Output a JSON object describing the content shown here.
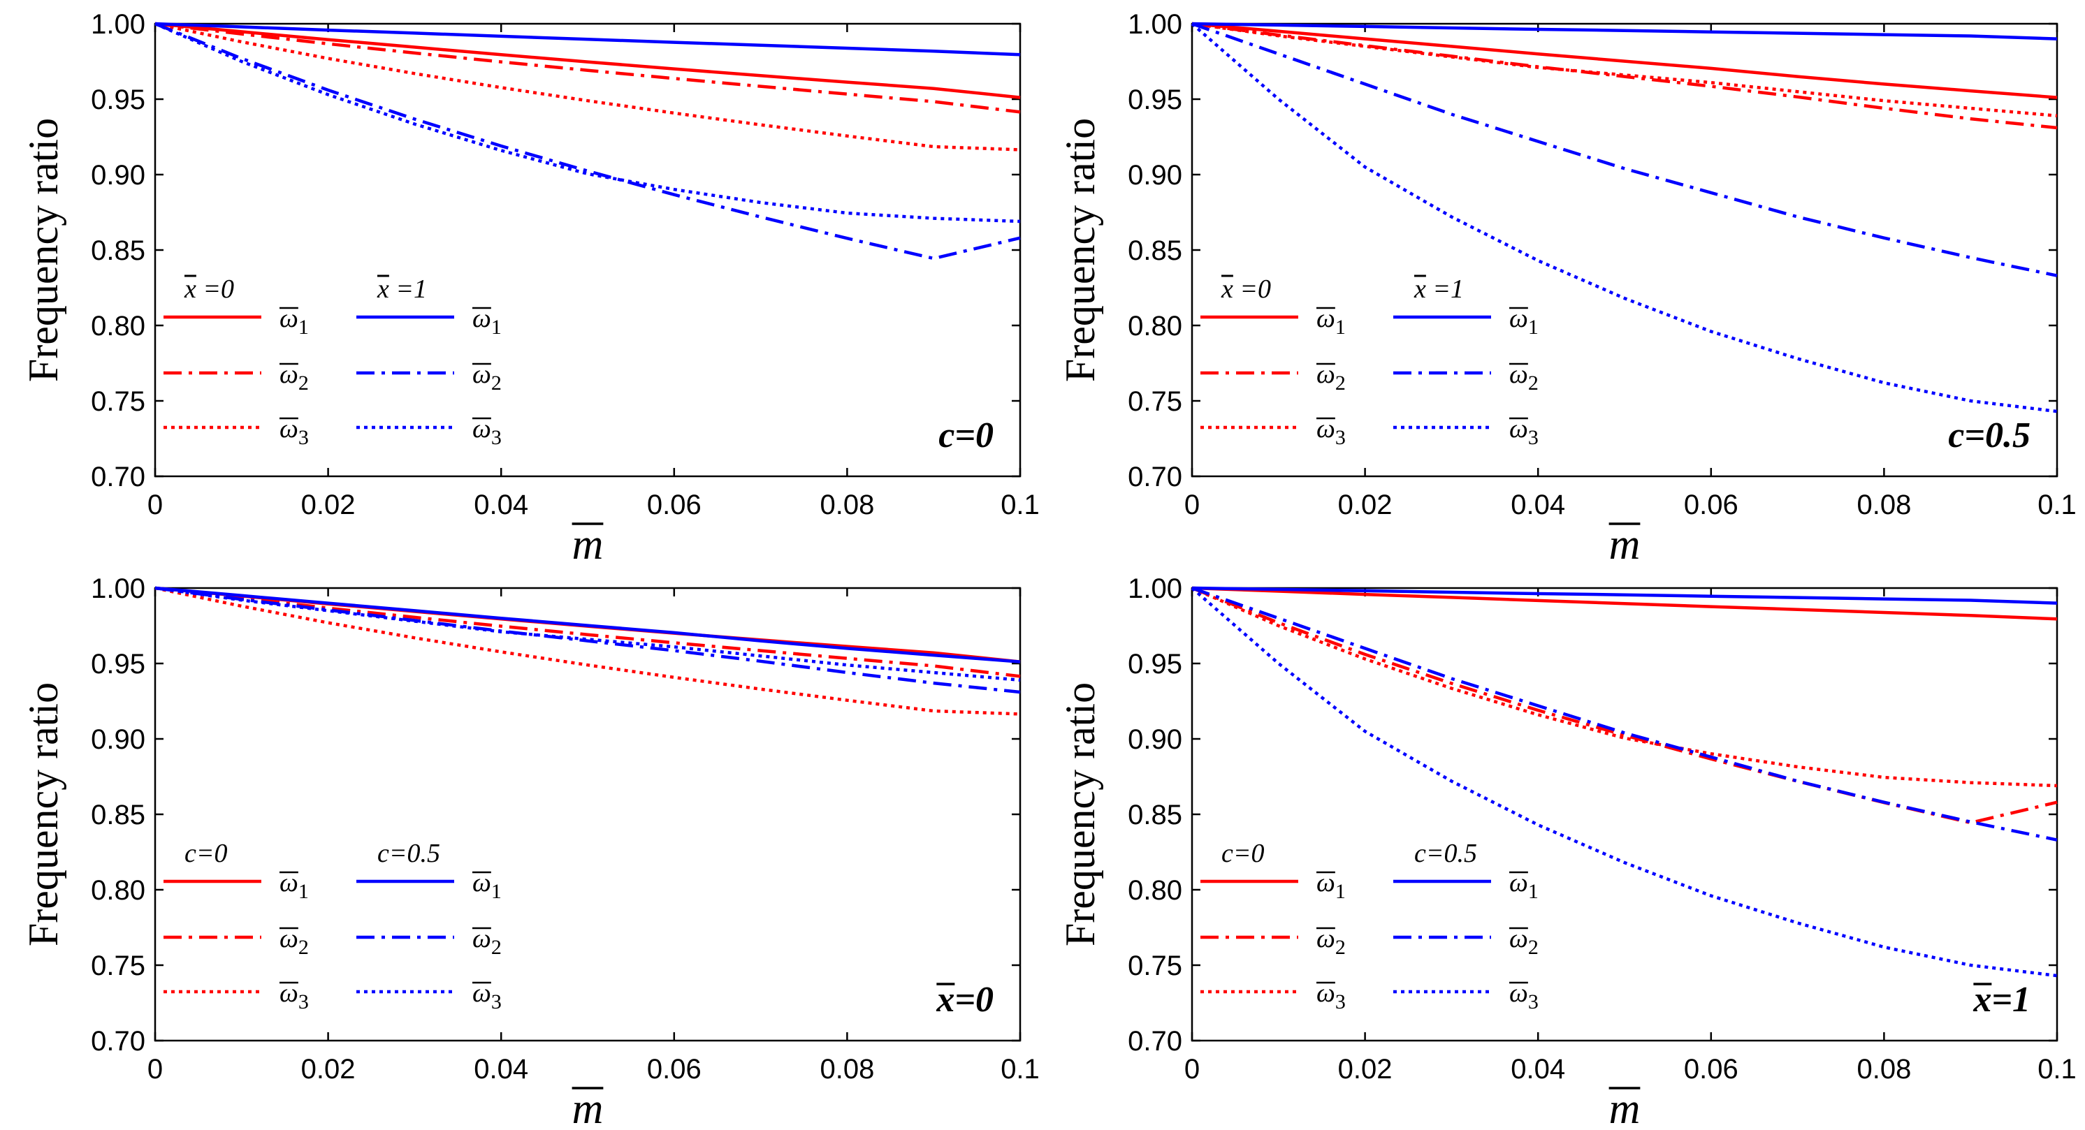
{
  "colors": {
    "red": "#ff0000",
    "blue": "#0000ff"
  },
  "chart_data": [
    {
      "type": "line",
      "xlabel": "m",
      "xlabel_overbar": true,
      "ylabel": "Frequency ratio",
      "xlim": [
        0,
        0.1
      ],
      "ylim": [
        0.7,
        1.0
      ],
      "x_ticks": [
        "0",
        "0.02",
        "0.04",
        "0.06",
        "0.08",
        "0.1"
      ],
      "y_ticks": [
        "0.70",
        "0.75",
        "0.80",
        "0.85",
        "0.90",
        "0.95",
        "1.00"
      ],
      "grid": false,
      "annotation": {
        "text": "c=0",
        "position": "bottom-right"
      },
      "legend": {
        "placement": "left",
        "groups": [
          {
            "title": "x =0",
            "title_overbar_char": "x",
            "color": "red"
          },
          {
            "title": "x =1",
            "title_overbar_char": "x",
            "color": "blue"
          }
        ],
        "entries": [
          {
            "label": "ω1",
            "style": "solid"
          },
          {
            "label": "ω2",
            "style": "dashdot"
          },
          {
            "label": "ω3",
            "style": "dotted"
          }
        ]
      },
      "x": [
        0,
        0.01,
        0.02,
        0.03,
        0.04,
        0.05,
        0.06,
        0.07,
        0.08,
        0.09,
        0.1
      ],
      "series": [
        {
          "color": "red",
          "style": "solid",
          "values": [
            1.0,
            0.9947,
            0.9895,
            0.9845,
            0.9795,
            0.9747,
            0.9701,
            0.9656,
            0.9613,
            0.9571,
            0.9511
          ]
        },
        {
          "color": "red",
          "style": "dashdot",
          "values": [
            1.0,
            0.9932,
            0.9867,
            0.9806,
            0.9747,
            0.9691,
            0.9637,
            0.9585,
            0.9534,
            0.9484,
            0.9415
          ]
        },
        {
          "color": "red",
          "style": "dotted",
          "values": [
            1.0,
            0.988,
            0.977,
            0.967,
            0.9577,
            0.949,
            0.9408,
            0.933,
            0.9256,
            0.9185,
            0.9165
          ]
        },
        {
          "color": "blue",
          "style": "solid",
          "values": [
            1.0,
            0.9979,
            0.9958,
            0.9938,
            0.9917,
            0.9897,
            0.9877,
            0.9858,
            0.9838,
            0.9818,
            0.9795
          ]
        },
        {
          "color": "blue",
          "style": "dashdot",
          "values": [
            1.0,
            0.977,
            0.956,
            0.9368,
            0.919,
            0.9024,
            0.8867,
            0.8719,
            0.8578,
            0.8444,
            0.858
          ]
        },
        {
          "color": "blue",
          "style": "dotted",
          "values": [
            1.0,
            0.975,
            0.953,
            0.9335,
            0.916,
            0.9005,
            0.8902,
            0.8815,
            0.8745,
            0.871,
            0.869
          ]
        }
      ]
    },
    {
      "type": "line",
      "xlabel": "m",
      "xlabel_overbar": true,
      "ylabel": "Frequency ratio",
      "xlim": [
        0,
        0.1
      ],
      "ylim": [
        0.7,
        1.0
      ],
      "x_ticks": [
        "0",
        "0.02",
        "0.04",
        "0.06",
        "0.08",
        "0.1"
      ],
      "y_ticks": [
        "0.70",
        "0.75",
        "0.80",
        "0.85",
        "0.90",
        "0.95",
        "1.00"
      ],
      "grid": false,
      "annotation": {
        "text": "c=0.5",
        "position": "bottom-right"
      },
      "legend": {
        "placement": "left",
        "groups": [
          {
            "title": "x =0",
            "title_overbar_char": "x",
            "color": "red"
          },
          {
            "title": "x =1",
            "title_overbar_char": "x",
            "color": "blue"
          }
        ],
        "entries": [
          {
            "label": "ω1",
            "style": "solid"
          },
          {
            "label": "ω2",
            "style": "dashdot"
          },
          {
            "label": "ω3",
            "style": "dotted"
          }
        ]
      },
      "x": [
        0,
        0.01,
        0.02,
        0.03,
        0.04,
        0.05,
        0.06,
        0.07,
        0.08,
        0.09,
        0.1
      ],
      "series": [
        {
          "color": "red",
          "style": "solid",
          "values": [
            1.0,
            0.995,
            0.99,
            0.985,
            0.98,
            0.9752,
            0.9704,
            0.965,
            0.96,
            0.9555,
            0.9511
          ]
        },
        {
          "color": "red",
          "style": "dashdot",
          "values": [
            1.0,
            0.9925,
            0.9855,
            0.9785,
            0.9715,
            0.965,
            0.9585,
            0.9515,
            0.944,
            0.937,
            0.931
          ]
        },
        {
          "color": "red",
          "style": "dotted",
          "values": [
            1.0,
            0.992,
            0.985,
            0.978,
            0.971,
            0.966,
            0.961,
            0.955,
            0.949,
            0.944,
            0.939
          ]
        },
        {
          "color": "blue",
          "style": "solid",
          "values": [
            1.0,
            0.9991,
            0.9982,
            0.9972,
            0.9963,
            0.9955,
            0.9946,
            0.9937,
            0.9928,
            0.9919,
            0.99
          ]
        },
        {
          "color": "blue",
          "style": "dashdot",
          "values": [
            1.0,
            0.98,
            0.96,
            0.94,
            0.922,
            0.904,
            0.888,
            0.872,
            0.858,
            0.845,
            0.833
          ]
        },
        {
          "color": "blue",
          "style": "dotted",
          "values": [
            1.0,
            0.95,
            0.905,
            0.872,
            0.843,
            0.818,
            0.796,
            0.778,
            0.762,
            0.75,
            0.743
          ]
        }
      ]
    },
    {
      "type": "line",
      "xlabel": "m",
      "xlabel_overbar": true,
      "ylabel": "Frequency ratio",
      "xlim": [
        0,
        0.1
      ],
      "ylim": [
        0.7,
        1.0
      ],
      "x_ticks": [
        "0",
        "0.02",
        "0.04",
        "0.06",
        "0.08",
        "0.1"
      ],
      "y_ticks": [
        "0.70",
        "0.75",
        "0.80",
        "0.85",
        "0.90",
        "0.95",
        "1.00"
      ],
      "grid": false,
      "annotation": {
        "text": "x=0",
        "overbar_char": "x",
        "position": "bottom-right"
      },
      "legend": {
        "placement": "left",
        "groups": [
          {
            "title": "c=0",
            "color": "red"
          },
          {
            "title": "c=0.5",
            "color": "blue"
          }
        ],
        "entries": [
          {
            "label": "ω1",
            "style": "solid"
          },
          {
            "label": "ω2",
            "style": "dashdot"
          },
          {
            "label": "ω3",
            "style": "dotted"
          }
        ]
      },
      "x": [
        0,
        0.01,
        0.02,
        0.03,
        0.04,
        0.05,
        0.06,
        0.07,
        0.08,
        0.09,
        0.1
      ],
      "series": [
        {
          "color": "red",
          "style": "solid",
          "values": [
            1.0,
            0.9947,
            0.9895,
            0.9845,
            0.9795,
            0.9747,
            0.9701,
            0.9656,
            0.9613,
            0.9571,
            0.9511
          ]
        },
        {
          "color": "red",
          "style": "dashdot",
          "values": [
            1.0,
            0.9932,
            0.9867,
            0.9806,
            0.9747,
            0.9691,
            0.9637,
            0.9585,
            0.9534,
            0.9484,
            0.9415
          ]
        },
        {
          "color": "red",
          "style": "dotted",
          "values": [
            1.0,
            0.988,
            0.977,
            0.967,
            0.9577,
            0.949,
            0.9408,
            0.933,
            0.9256,
            0.9185,
            0.9165
          ]
        },
        {
          "color": "blue",
          "style": "solid",
          "values": [
            1.0,
            0.995,
            0.99,
            0.985,
            0.98,
            0.9752,
            0.9704,
            0.965,
            0.96,
            0.9555,
            0.9511
          ]
        },
        {
          "color": "blue",
          "style": "dashdot",
          "values": [
            1.0,
            0.9925,
            0.9855,
            0.9785,
            0.9715,
            0.965,
            0.9585,
            0.9515,
            0.944,
            0.937,
            0.931
          ]
        },
        {
          "color": "blue",
          "style": "dotted",
          "values": [
            1.0,
            0.992,
            0.985,
            0.978,
            0.971,
            0.966,
            0.961,
            0.955,
            0.949,
            0.944,
            0.939
          ]
        }
      ]
    },
    {
      "type": "line",
      "xlabel": "m",
      "xlabel_overbar": true,
      "ylabel": "Frequency ratio",
      "xlim": [
        0,
        0.1
      ],
      "ylim": [
        0.7,
        1.0
      ],
      "x_ticks": [
        "0",
        "0.02",
        "0.04",
        "0.06",
        "0.08",
        "0.1"
      ],
      "y_ticks": [
        "0.70",
        "0.75",
        "0.80",
        "0.85",
        "0.90",
        "0.95",
        "1.00"
      ],
      "grid": false,
      "annotation": {
        "text": "x=1",
        "overbar_char": "x",
        "position": "bottom-right"
      },
      "legend": {
        "placement": "left",
        "groups": [
          {
            "title": "c=0",
            "color": "red"
          },
          {
            "title": "c=0.5",
            "color": "blue"
          }
        ],
        "entries": [
          {
            "label": "ω1",
            "style": "solid"
          },
          {
            "label": "ω2",
            "style": "dashdot"
          },
          {
            "label": "ω3",
            "style": "dotted"
          }
        ]
      },
      "x": [
        0,
        0.01,
        0.02,
        0.03,
        0.04,
        0.05,
        0.06,
        0.07,
        0.08,
        0.09,
        0.1
      ],
      "series": [
        {
          "color": "red",
          "style": "solid",
          "values": [
            1.0,
            0.9979,
            0.9958,
            0.9938,
            0.9917,
            0.9897,
            0.9877,
            0.9858,
            0.9838,
            0.9818,
            0.9795
          ]
        },
        {
          "color": "red",
          "style": "dashdot",
          "values": [
            1.0,
            0.977,
            0.956,
            0.9368,
            0.919,
            0.9024,
            0.8867,
            0.8719,
            0.8578,
            0.8444,
            0.858
          ]
        },
        {
          "color": "red",
          "style": "dotted",
          "values": [
            1.0,
            0.975,
            0.953,
            0.9335,
            0.916,
            0.9005,
            0.8902,
            0.8815,
            0.8745,
            0.871,
            0.869
          ]
        },
        {
          "color": "blue",
          "style": "solid",
          "values": [
            1.0,
            0.9991,
            0.9982,
            0.9972,
            0.9963,
            0.9955,
            0.9946,
            0.9937,
            0.9928,
            0.9919,
            0.99
          ]
        },
        {
          "color": "blue",
          "style": "dashdot",
          "values": [
            1.0,
            0.98,
            0.96,
            0.94,
            0.922,
            0.904,
            0.888,
            0.872,
            0.858,
            0.845,
            0.833
          ]
        },
        {
          "color": "blue",
          "style": "dotted",
          "values": [
            1.0,
            0.95,
            0.905,
            0.872,
            0.843,
            0.818,
            0.796,
            0.778,
            0.762,
            0.75,
            0.743
          ]
        }
      ]
    }
  ]
}
